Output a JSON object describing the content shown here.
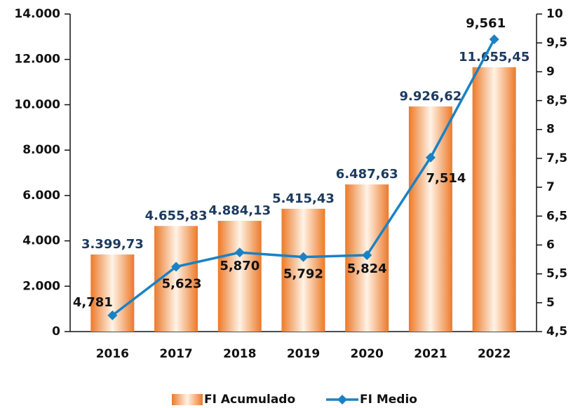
{
  "chart_data": {
    "type": "bar",
    "categories": [
      "2016",
      "2017",
      "2018",
      "2019",
      "2020",
      "2021",
      "2022"
    ],
    "series": [
      {
        "name": "FI Acumulado",
        "type": "bar",
        "color": "#f08a3c",
        "values": [
          3399.73,
          4655.83,
          4884.13,
          5415.43,
          6487.63,
          9926.62,
          11655.45
        ],
        "value_labels": [
          "3.399,73",
          "4.655,83",
          "4.884,13",
          "5.415,43",
          "6.487,63",
          "9.926,62",
          "11.655,45"
        ]
      },
      {
        "name": "FI Medio",
        "type": "line",
        "axis": "y2",
        "color": "#1a82c4",
        "values": [
          4.781,
          5.623,
          5.87,
          5.792,
          5.824,
          7.514,
          9.561
        ],
        "value_labels": [
          "4,781",
          "5,623",
          "5,870",
          "5,792",
          "5,824",
          "7,514",
          "9,561"
        ]
      }
    ],
    "ylim": [
      0,
      14000
    ],
    "yticks": [
      0,
      {
        "value": 2000,
        "label": "2.000"
      },
      {
        "value": 4000,
        "label": "4.000"
      },
      {
        "value": 6000,
        "label": "6.000"
      },
      {
        "value": 8000,
        "label": "8.000"
      },
      {
        "value": 10000,
        "label": "10.000"
      },
      {
        "value": 12000,
        "label": "12.000"
      },
      {
        "value": 14000,
        "label": "14.000"
      }
    ],
    "y2lim": [
      4.5,
      10
    ],
    "y2ticks": [
      {
        "value": 4.5,
        "label": "4,5"
      },
      5,
      {
        "value": 5.5,
        "label": "5,5"
      },
      6,
      {
        "value": 6.5,
        "label": "6,5"
      },
      7,
      {
        "value": 7.5,
        "label": "7,5"
      },
      8,
      {
        "value": 8.5,
        "label": "8,5"
      },
      9,
      {
        "value": 9.5,
        "label": "9,5"
      },
      10
    ],
    "legend": "bottom"
  }
}
